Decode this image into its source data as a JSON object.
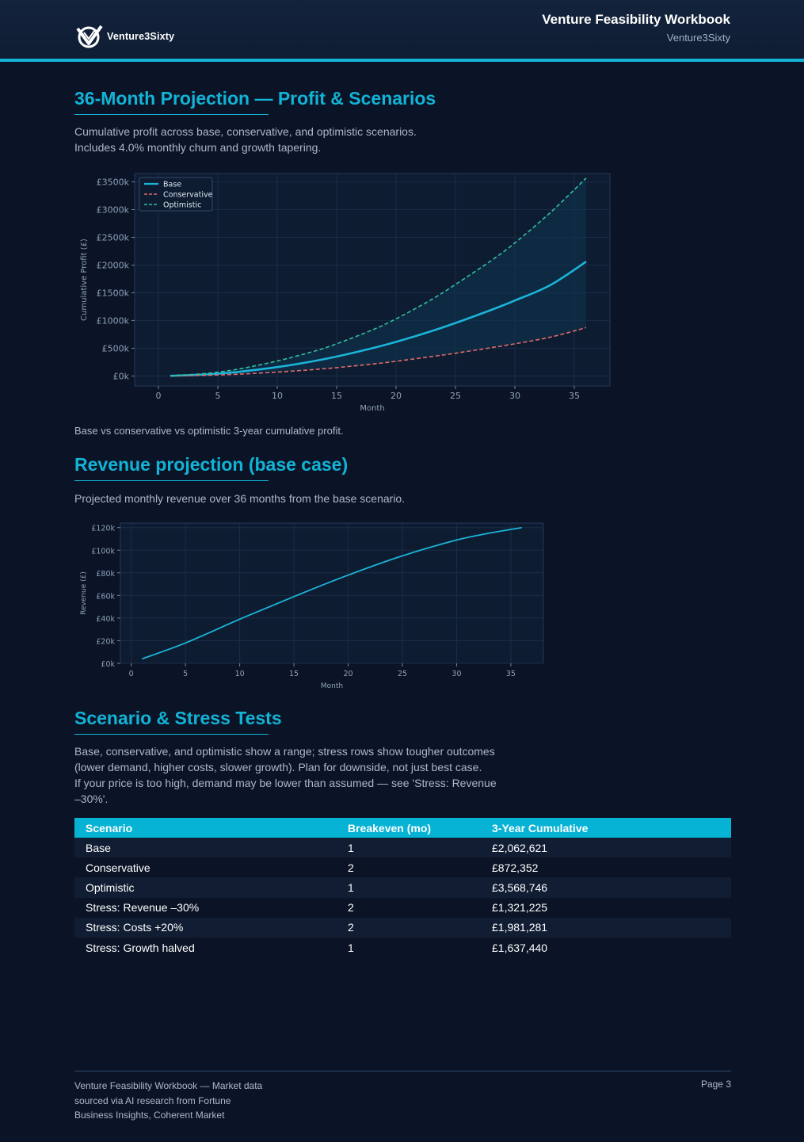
{
  "header": {
    "logo_text": "Venture3Sixty",
    "title": "Venture Feasibility Workbook",
    "subtitle": "Venture3Sixty"
  },
  "section1": {
    "title": "36-Month Projection — Profit & Scenarios",
    "desc_line1": "Cumulative profit across base, conservative, and optimistic scenarios.",
    "desc_line2": "Includes 4.0% monthly churn and growth tapering.",
    "caption": "Base vs conservative vs optimistic 3-year cumulative profit."
  },
  "section2": {
    "title": "Revenue projection (base case)",
    "desc": "Projected monthly revenue over 36 months from the base scenario."
  },
  "section3": {
    "title": "Scenario & Stress Tests",
    "desc_line1": "Base, conservative, and optimistic show a range; stress rows show tougher outcomes",
    "desc_line2": "(lower demand, higher costs, slower growth). Plan for downside, not just best case.",
    "desc_line3": "If your price is too high, demand may be lower than assumed — see 'Stress: Revenue",
    "desc_line4": "–30%'."
  },
  "table": {
    "headers": [
      "Scenario",
      "Breakeven (mo)",
      "3-Year Cumulative"
    ],
    "rows": [
      [
        "Base",
        "1",
        "£2,062,621"
      ],
      [
        "Conservative",
        "2",
        "£872,352"
      ],
      [
        "Optimistic",
        "1",
        "£3,568,746"
      ],
      [
        "Stress: Revenue –30%",
        "2",
        "£1,321,225"
      ],
      [
        "Stress: Costs +20%",
        "2",
        "£1,981,281"
      ],
      [
        "Stress: Growth halved",
        "1",
        "£1,637,440"
      ]
    ]
  },
  "footer": {
    "line1": "Venture Feasibility Workbook — Market data",
    "line2": "sourced via AI research from Fortune",
    "line3": "Business Insights, Coherent Market",
    "page": "Page 3"
  },
  "colors": {
    "accent": "#12b3d6",
    "base": "#1ab4d8",
    "conservative": "#e06b6b",
    "optimistic": "#2fbfa3"
  },
  "chart_data": [
    {
      "type": "line",
      "xlabel": "Month",
      "ylabel": "Cumulative Profit (£)",
      "xlim": [
        -2,
        38
      ],
      "ylim": [
        -180000,
        3650000
      ],
      "xticks": [
        0,
        5,
        10,
        15,
        20,
        25,
        30,
        35
      ],
      "yticks": [
        0,
        500000,
        1000000,
        1500000,
        2000000,
        2500000,
        3000000,
        3500000
      ],
      "ytick_labels": [
        "£0k",
        "£500k",
        "£1000k",
        "£1500k",
        "£2000k",
        "£2500k",
        "£3000k",
        "£3500k"
      ],
      "legend_position": "top-left",
      "fill_between": [
        "Conservative",
        "Optimistic"
      ],
      "x": [
        1,
        3,
        5,
        7,
        10,
        13,
        15,
        18,
        20,
        23,
        25,
        28,
        30,
        33,
        36
      ],
      "series": [
        {
          "name": "Base",
          "style": "solid",
          "values": [
            3000,
            17000,
            42000,
            80000,
            160000,
            265000,
            350000,
            500000,
            615000,
            810000,
            955000,
            1190000,
            1360000,
            1640000,
            2062621
          ]
        },
        {
          "name": "Conservative",
          "style": "dashed",
          "values": [
            1500,
            7000,
            18000,
            35000,
            70000,
            115000,
            150000,
            215000,
            265000,
            350000,
            410000,
            510000,
            580000,
            700000,
            872352
          ]
        },
        {
          "name": "Optimistic",
          "style": "dashed",
          "values": [
            4500,
            28000,
            70000,
            135000,
            270000,
            440000,
            580000,
            830000,
            1030000,
            1380000,
            1650000,
            2080000,
            2400000,
            2950000,
            3568746
          ]
        }
      ]
    },
    {
      "type": "line",
      "xlabel": "Month",
      "ylabel": "Revenue (£)",
      "xlim": [
        -1,
        38
      ],
      "ylim": [
        0,
        124000
      ],
      "xticks": [
        0,
        5,
        10,
        15,
        20,
        25,
        30,
        35
      ],
      "yticks": [
        0,
        20000,
        40000,
        60000,
        80000,
        100000,
        120000
      ],
      "ytick_labels": [
        "£0k",
        "£20k",
        "£40k",
        "£60k",
        "£80k",
        "£100k",
        "£120k"
      ],
      "x": [
        1,
        5,
        10,
        15,
        20,
        25,
        30,
        33,
        36
      ],
      "series": [
        {
          "name": "Base",
          "values": [
            4000,
            18000,
            39000,
            59000,
            78000,
            95000,
            109000,
            115000,
            120000
          ]
        }
      ]
    }
  ]
}
